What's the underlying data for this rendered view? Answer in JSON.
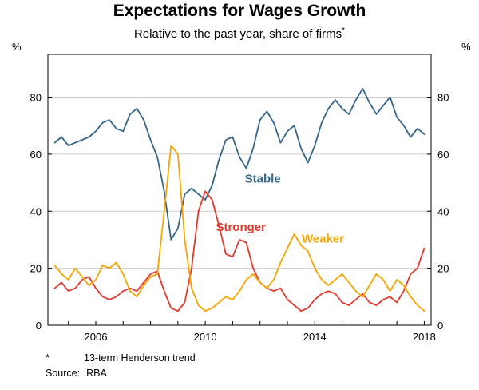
{
  "header": {
    "title": "Expectations for Wages Growth",
    "subtitle": "Relative to the past year, share of firms",
    "subtitle_marker": "*"
  },
  "axes": {
    "unit_left": "%",
    "unit_right": "%"
  },
  "footnotes": {
    "note_marker": "*",
    "note_text": "13-term Henderson trend",
    "source_label": "Source:",
    "source_text": "RBA"
  },
  "chart_data": {
    "type": "line",
    "title": "Expectations for Wages Growth",
    "subtitle": "Relative to the past year, share of firms*",
    "ylabel": "%",
    "ylim": [
      0,
      95
    ],
    "yticks": [
      0,
      20,
      40,
      60,
      80
    ],
    "xlim": [
      2004.25,
      2018.25
    ],
    "xticks_minor_start": 2005,
    "xticks_minor_end": 2018,
    "xticks_labeled": [
      2006,
      2010,
      2014,
      2018
    ],
    "grid": true,
    "legend_position": "inline-labels",
    "x": [
      2004.5,
      2004.75,
      2005.0,
      2005.25,
      2005.5,
      2005.75,
      2006.0,
      2006.25,
      2006.5,
      2006.75,
      2007.0,
      2007.25,
      2007.5,
      2007.75,
      2008.0,
      2008.25,
      2008.5,
      2008.75,
      2009.0,
      2009.25,
      2009.5,
      2009.75,
      2010.0,
      2010.25,
      2010.5,
      2010.75,
      2011.0,
      2011.25,
      2011.5,
      2011.75,
      2012.0,
      2012.25,
      2012.5,
      2012.75,
      2013.0,
      2013.25,
      2013.5,
      2013.75,
      2014.0,
      2014.25,
      2014.5,
      2014.75,
      2015.0,
      2015.25,
      2015.5,
      2015.75,
      2016.0,
      2016.25,
      2016.5,
      2016.75,
      2017.0,
      2017.25,
      2017.5,
      2017.75,
      2018.0
    ],
    "series": [
      {
        "name": "Stable",
        "color": "#33658a",
        "label_at": [
          2012.1,
          50
        ],
        "values": [
          64,
          66,
          63,
          64,
          65,
          66,
          68,
          71,
          72,
          69,
          68,
          74,
          76,
          72,
          65,
          59,
          47,
          30,
          34,
          46,
          48,
          46,
          44,
          49,
          58,
          65,
          66,
          59,
          55,
          62,
          72,
          75,
          71,
          64,
          68,
          70,
          62,
          57,
          63,
          71,
          76,
          79,
          76,
          74,
          79,
          83,
          78,
          74,
          77,
          80,
          73,
          70,
          66,
          69,
          67
        ]
      },
      {
        "name": "Stronger",
        "color": "#e2392e",
        "label_at": [
          2011.3,
          33
        ],
        "values": [
          13,
          15,
          12,
          13,
          16,
          17,
          13,
          10,
          9,
          10,
          12,
          13,
          12,
          15,
          18,
          19,
          12,
          6,
          5,
          8,
          20,
          40,
          47,
          44,
          35,
          25,
          24,
          30,
          29,
          20,
          15,
          13,
          12,
          13,
          9,
          7,
          5,
          6,
          9,
          11,
          12,
          11,
          8,
          7,
          9,
          11,
          8,
          7,
          9,
          10,
          8,
          12,
          18,
          20,
          27
        ]
      },
      {
        "name": "Weaker",
        "color": "#f5a400",
        "label_at": [
          2014.3,
          29
        ],
        "values": [
          21,
          18,
          16,
          20,
          17,
          14,
          16,
          21,
          20,
          22,
          18,
          12,
          10,
          14,
          17,
          18,
          40,
          63,
          60,
          30,
          13,
          7,
          5,
          6,
          8,
          10,
          9,
          12,
          16,
          18,
          15,
          13,
          16,
          22,
          27,
          32,
          28,
          26,
          20,
          16,
          14,
          16,
          18,
          15,
          12,
          10,
          14,
          18,
          16,
          12,
          16,
          14,
          10,
          7,
          5
        ]
      }
    ]
  }
}
